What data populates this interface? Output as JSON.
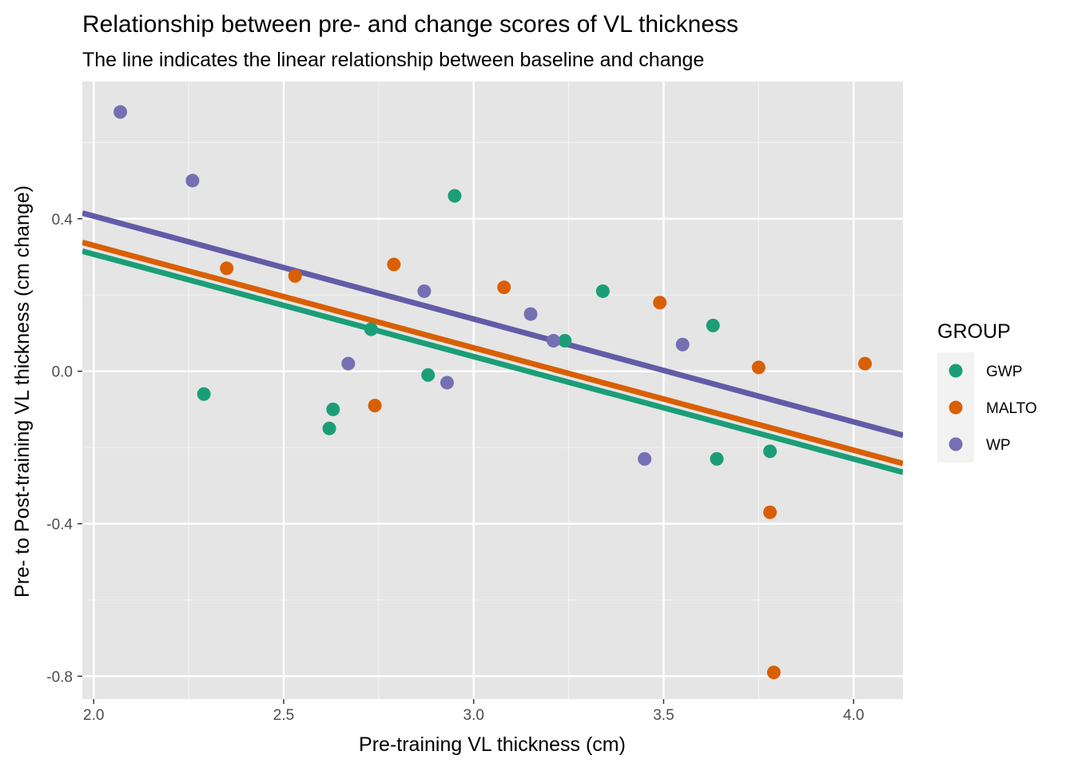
{
  "chart_data": {
    "type": "scatter",
    "title": "Relationship between pre- and change scores of VL thickness",
    "subtitle": "The line indicates the linear relationship between baseline and change",
    "xlabel": "Pre-training VL thickness (cm)",
    "ylabel": "Pre- to Post-training VL thickness (cm change)",
    "xlim": [
      1.97,
      4.13
    ],
    "ylim": [
      -0.86,
      0.76
    ],
    "x_ticks": [
      "2.0",
      "2.5",
      "3.0",
      "3.5",
      "4.0"
    ],
    "y_ticks": [
      "-0.8",
      "-0.4",
      "0.0",
      "0.4"
    ],
    "x_tick_values": [
      2.0,
      2.5,
      3.0,
      3.5,
      4.0
    ],
    "y_tick_values": [
      -0.8,
      -0.4,
      0.0,
      0.4
    ],
    "grid": true,
    "legend": {
      "title": "GROUP",
      "position": "right"
    },
    "series": [
      {
        "name": "GWP",
        "color": "#1b9e77",
        "points": [
          {
            "x": 2.29,
            "y": -0.06
          },
          {
            "x": 2.62,
            "y": -0.15
          },
          {
            "x": 2.63,
            "y": -0.1
          },
          {
            "x": 2.73,
            "y": 0.11
          },
          {
            "x": 2.88,
            "y": -0.01
          },
          {
            "x": 2.95,
            "y": 0.46
          },
          {
            "x": 3.24,
            "y": 0.08
          },
          {
            "x": 3.34,
            "y": 0.21
          },
          {
            "x": 3.63,
            "y": 0.12
          },
          {
            "x": 3.64,
            "y": -0.23
          },
          {
            "x": 3.78,
            "y": -0.21
          }
        ],
        "fit": [
          {
            "x": 1.97,
            "y": 0.315
          },
          {
            "x": 4.13,
            "y": -0.265
          }
        ]
      },
      {
        "name": "MALTO",
        "color": "#d95f02",
        "points": [
          {
            "x": 2.35,
            "y": 0.27
          },
          {
            "x": 2.53,
            "y": 0.25
          },
          {
            "x": 2.74,
            "y": -0.09
          },
          {
            "x": 2.79,
            "y": 0.28
          },
          {
            "x": 3.08,
            "y": 0.22
          },
          {
            "x": 3.49,
            "y": 0.18
          },
          {
            "x": 3.75,
            "y": 0.01
          },
          {
            "x": 3.78,
            "y": -0.37
          },
          {
            "x": 3.79,
            "y": -0.79
          },
          {
            "x": 4.03,
            "y": 0.02
          }
        ],
        "fit": [
          {
            "x": 1.97,
            "y": 0.338
          },
          {
            "x": 4.13,
            "y": -0.242
          }
        ]
      },
      {
        "name": "WP",
        "color": "#7570b3",
        "points": [
          {
            "x": 2.07,
            "y": 0.68
          },
          {
            "x": 2.26,
            "y": 0.5
          },
          {
            "x": 2.67,
            "y": 0.02
          },
          {
            "x": 2.87,
            "y": 0.21
          },
          {
            "x": 2.93,
            "y": -0.03
          },
          {
            "x": 3.15,
            "y": 0.15
          },
          {
            "x": 3.21,
            "y": 0.08
          },
          {
            "x": 3.45,
            "y": -0.23
          },
          {
            "x": 3.55,
            "y": 0.07
          }
        ],
        "fit": [
          {
            "x": 1.97,
            "y": 0.415
          },
          {
            "x": 4.13,
            "y": -0.168
          }
        ],
        "fit_color": "#625ca8"
      }
    ]
  }
}
